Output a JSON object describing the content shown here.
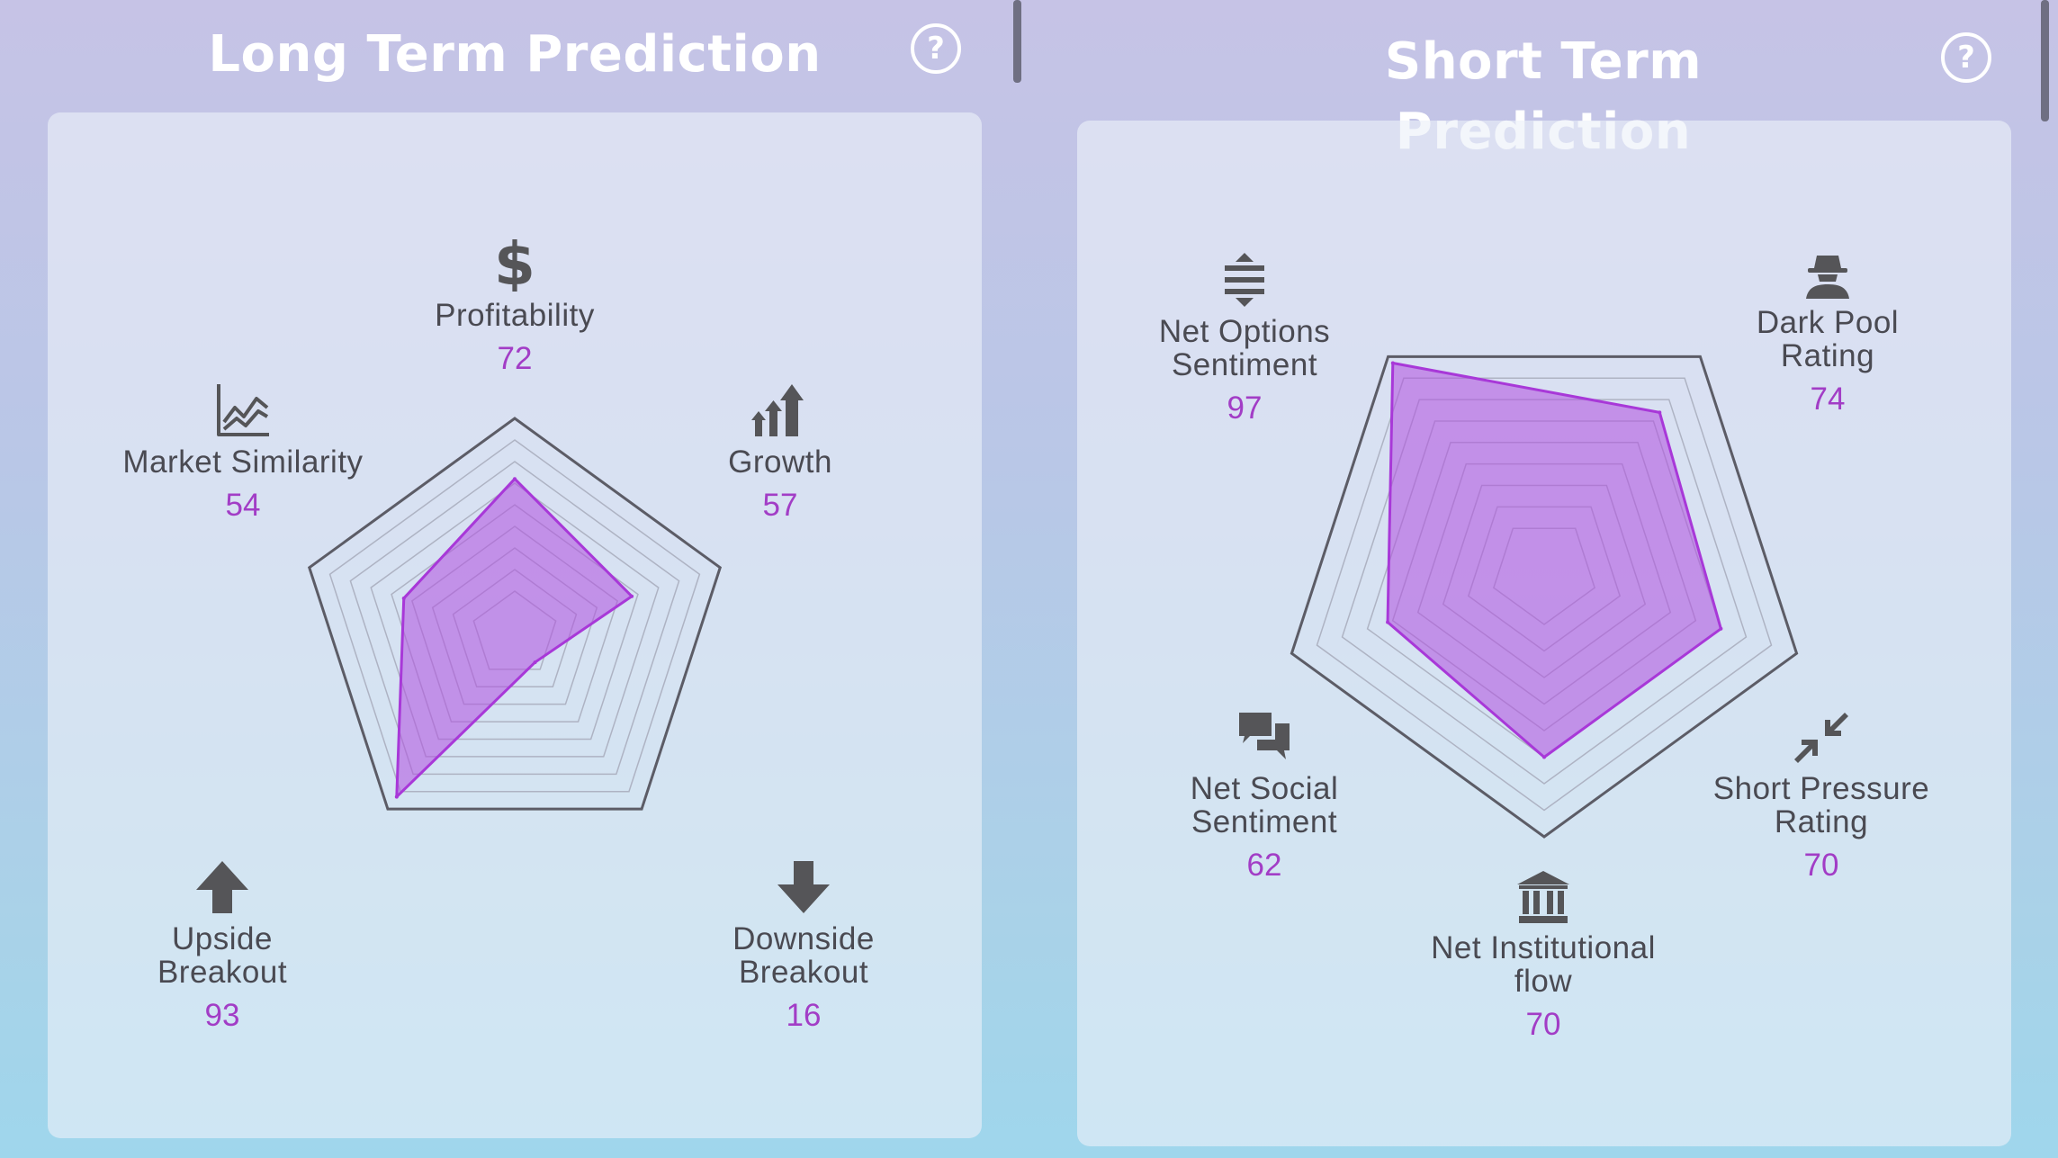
{
  "header": {
    "left_title": "Long Term Prediction",
    "right_title": "Short Term Prediction",
    "help_label": "?"
  },
  "colors": {
    "value_text": "#a23dc6",
    "radar_fill": "#b04ee0",
    "radar_stroke": "#a838d8",
    "label_text": "#4a4a52",
    "icon": "#555558"
  },
  "chart_data": [
    {
      "type": "radar",
      "title": "Long Term Prediction",
      "range": [
        0,
        100
      ],
      "axes": [
        {
          "label": "Profitability",
          "value": 72,
          "icon": "dollar-icon"
        },
        {
          "label": "Growth",
          "value": 57,
          "icon": "growth-arrows-icon"
        },
        {
          "label": "Downside\nBreakout",
          "value": 16,
          "icon": "arrow-down-icon"
        },
        {
          "label": "Upside\nBreakout",
          "value": 93,
          "icon": "arrow-up-icon"
        },
        {
          "label": "Market Similarity",
          "value": 54,
          "icon": "line-chart-icon"
        }
      ],
      "values": [
        72,
        57,
        16,
        93,
        54
      ],
      "grid": true
    },
    {
      "type": "radar",
      "title": "Short Term Prediction",
      "range": [
        0,
        100
      ],
      "axes": [
        {
          "label": "Dark Pool\nRating",
          "value": 74,
          "icon": "spy-icon"
        },
        {
          "label": "Short Pressure\nRating",
          "value": 70,
          "icon": "compress-arrows-icon"
        },
        {
          "label": "Net Institutional\nflow",
          "value": 70,
          "icon": "bank-icon"
        },
        {
          "label": "Net Social\nSentiment",
          "value": 62,
          "icon": "chat-bubbles-icon"
        },
        {
          "label": "Net Options\nSentiment",
          "value": 97,
          "icon": "up-down-arrows-icon"
        }
      ],
      "values": [
        74,
        70,
        70,
        62,
        97
      ],
      "grid": true
    }
  ]
}
